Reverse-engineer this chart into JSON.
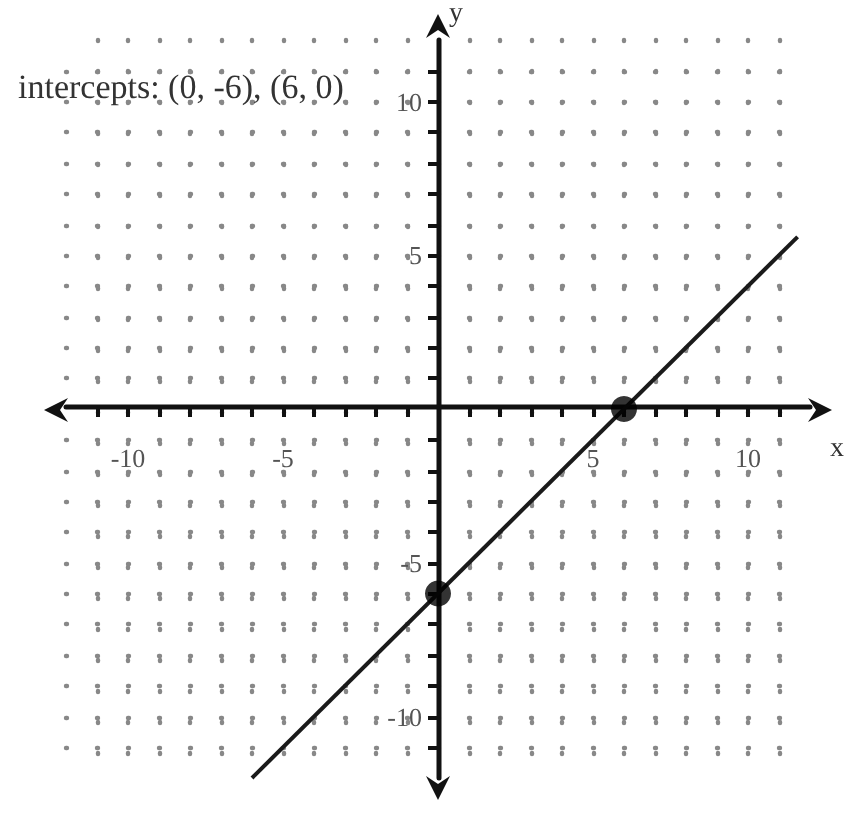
{
  "chart_data": {
    "type": "line",
    "title": "intercepts: (0, -6), (6, 0)",
    "xlabel": "x",
    "ylabel": "y",
    "xlim": [
      -12,
      12
    ],
    "ylim": [
      -12,
      12
    ],
    "xticks": [
      {
        "value": -11,
        "label": null
      },
      -10,
      {
        "value": -9,
        "label": null
      },
      {
        "value": -8,
        "label": null
      },
      {
        "value": -7,
        "label": null
      },
      {
        "value": -6,
        "label": null
      },
      -5,
      {
        "value": -4,
        "label": null
      },
      {
        "value": -3,
        "label": null
      },
      {
        "value": -2,
        "label": null
      },
      {
        "value": -1,
        "label": null
      },
      {
        "value": 1,
        "label": null
      },
      {
        "value": 2,
        "label": null
      },
      {
        "value": 3,
        "label": null
      },
      {
        "value": 4,
        "label": null
      },
      5,
      {
        "value": 6,
        "label": null
      },
      {
        "value": 7,
        "label": null
      },
      {
        "value": 8,
        "label": null
      },
      {
        "value": 9,
        "label": null
      },
      10,
      {
        "value": 11,
        "label": null
      }
    ],
    "yticks": [
      {
        "value": -11,
        "label": null
      },
      -10,
      {
        "value": -9,
        "label": null
      },
      {
        "value": -8,
        "label": null
      },
      {
        "value": -7,
        "label": null
      },
      {
        "value": -6,
        "label": null
      },
      -5,
      {
        "value": -4,
        "label": null
      },
      {
        "value": -3,
        "label": null
      },
      {
        "value": -2,
        "label": null
      },
      {
        "value": -1,
        "label": null
      },
      {
        "value": 1,
        "label": null
      },
      {
        "value": 2,
        "label": null
      },
      {
        "value": 3,
        "label": null
      },
      {
        "value": 4,
        "label": null
      },
      5,
      {
        "value": 6,
        "label": null
      },
      {
        "value": 7,
        "label": null
      },
      {
        "value": 8,
        "label": null
      },
      {
        "value": 9,
        "label": null
      },
      10,
      {
        "value": 11,
        "label": null
      }
    ],
    "grid": true,
    "series": [
      {
        "type": "line",
        "color": "#1a1a1a",
        "x": [
          -6,
          11.6
        ],
        "values": [
          -12,
          5.6
        ],
        "marker": "none"
      },
      {
        "type": "scatter",
        "color": "#000000",
        "x": [
          0,
          6
        ],
        "values": [
          -6,
          0
        ],
        "marker": "circle"
      }
    ]
  }
}
